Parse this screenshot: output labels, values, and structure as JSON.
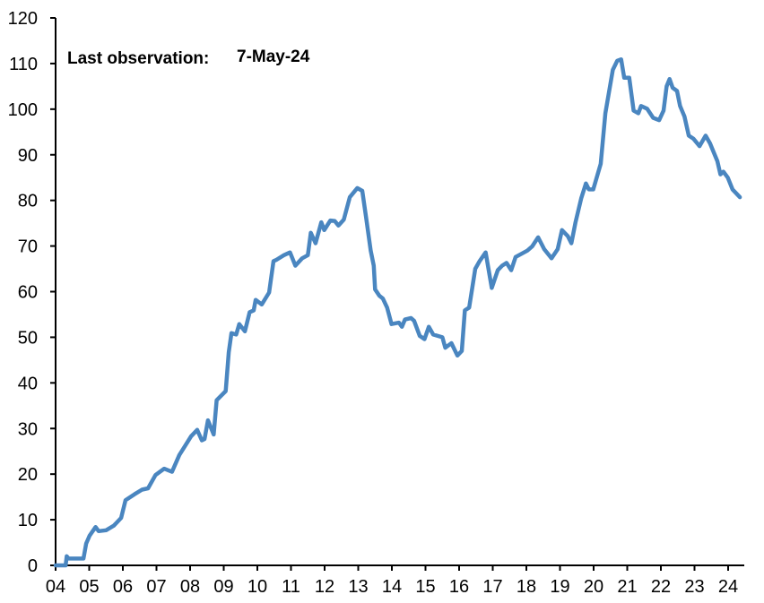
{
  "chart_data": {
    "type": "line",
    "title": "",
    "xlabel": "",
    "ylabel": "",
    "annotation": {
      "label": "Last observation:",
      "value": "7-May-24"
    },
    "xlim": [
      2004,
      2024.5
    ],
    "ylim": [
      0,
      120
    ],
    "y_ticks": [
      0,
      10,
      20,
      30,
      40,
      50,
      60,
      70,
      80,
      90,
      100,
      110,
      120
    ],
    "x_ticks": [
      {
        "value": 2004,
        "label": "04"
      },
      {
        "value": 2005,
        "label": "05"
      },
      {
        "value": 2006,
        "label": "06"
      },
      {
        "value": 2007,
        "label": "07"
      },
      {
        "value": 2008,
        "label": "08"
      },
      {
        "value": 2009,
        "label": "09"
      },
      {
        "value": 2010,
        "label": "10"
      },
      {
        "value": 2011,
        "label": "11"
      },
      {
        "value": 2012,
        "label": "12"
      },
      {
        "value": 2013,
        "label": "13"
      },
      {
        "value": 2014,
        "label": "14"
      },
      {
        "value": 2015,
        "label": "15"
      },
      {
        "value": 2016,
        "label": "16"
      },
      {
        "value": 2017,
        "label": "17"
      },
      {
        "value": 2018,
        "label": "18"
      },
      {
        "value": 2019,
        "label": "19"
      },
      {
        "value": 2020,
        "label": "20"
      },
      {
        "value": 2021,
        "label": "21"
      },
      {
        "value": 2022,
        "label": "22"
      },
      {
        "value": 2023,
        "label": "23"
      },
      {
        "value": 2024,
        "label": "24"
      }
    ],
    "grid": false,
    "legend": "none",
    "line_color": "#4a86c0",
    "series": [
      {
        "x": [
          2004.0,
          2004.3,
          2004.33,
          2004.39,
          2004.83,
          2004.91,
          2005.01,
          2005.19,
          2005.28,
          2005.5,
          2005.73,
          2005.95,
          2006.08,
          2006.35,
          2006.57,
          2006.75,
          2006.97,
          2007.23,
          2007.46,
          2007.68,
          2007.81,
          2008.03,
          2008.21,
          2008.35,
          2008.43,
          2008.53,
          2008.7,
          2008.79,
          2009.06,
          2009.15,
          2009.23,
          2009.37,
          2009.46,
          2009.63,
          2009.77,
          2009.89,
          2009.95,
          2010.13,
          2010.35,
          2010.48,
          2010.57,
          2010.79,
          2010.97,
          2011.13,
          2011.33,
          2011.5,
          2011.59,
          2011.73,
          2011.9,
          2011.99,
          2012.17,
          2012.3,
          2012.41,
          2012.57,
          2012.75,
          2012.97,
          2013.12,
          2013.23,
          2013.37,
          2013.46,
          2013.5,
          2013.63,
          2013.73,
          2013.86,
          2013.99,
          2014.21,
          2014.3,
          2014.39,
          2014.57,
          2014.66,
          2014.83,
          2014.97,
          2015.1,
          2015.23,
          2015.5,
          2015.59,
          2015.77,
          2015.95,
          2016.08,
          2016.17,
          2016.3,
          2016.48,
          2016.61,
          2016.79,
          2016.97,
          2017.15,
          2017.28,
          2017.41,
          2017.55,
          2017.68,
          2017.86,
          2018.03,
          2018.17,
          2018.35,
          2018.53,
          2018.75,
          2018.93,
          2019.06,
          2019.23,
          2019.34,
          2019.46,
          2019.63,
          2019.77,
          2019.86,
          2019.99,
          2020.13,
          2020.21,
          2020.35,
          2020.57,
          2020.7,
          2020.82,
          2020.91,
          2021.06,
          2021.19,
          2021.33,
          2021.41,
          2021.59,
          2021.77,
          2021.95,
          2022.08,
          2022.17,
          2022.26,
          2022.35,
          2022.48,
          2022.57,
          2022.7,
          2022.83,
          2022.97,
          2023.15,
          2023.33,
          2023.46,
          2023.68,
          2023.77,
          2023.86,
          2023.99,
          2024.13,
          2024.35
        ],
        "y": [
          0,
          0,
          2.0,
          1.5,
          1.5,
          4.8,
          6.5,
          8.4,
          7.5,
          7.7,
          8.7,
          10.4,
          14.3,
          15.6,
          16.6,
          16.9,
          19.8,
          21.2,
          20.5,
          24.2,
          25.7,
          28.3,
          29.7,
          27.4,
          27.7,
          31.8,
          28.7,
          36.2,
          38.2,
          46.7,
          50.9,
          50.6,
          52.9,
          51.3,
          55.5,
          55.9,
          58.2,
          57.2,
          59.8,
          66.7,
          67.0,
          68.0,
          68.6,
          65.7,
          67.3,
          68.0,
          72.9,
          70.6,
          75.2,
          73.5,
          75.6,
          75.5,
          74.5,
          75.8,
          80.7,
          82.7,
          82.1,
          76.5,
          69.0,
          65.7,
          60.5,
          59.1,
          58.5,
          56.5,
          52.9,
          53.2,
          52.3,
          53.9,
          54.2,
          53.6,
          50.3,
          49.6,
          52.3,
          50.6,
          50.0,
          47.7,
          48.7,
          46.0,
          47.0,
          55.9,
          56.5,
          65.0,
          66.7,
          68.6,
          60.8,
          64.7,
          65.7,
          66.3,
          64.7,
          67.6,
          68.3,
          69.0,
          69.9,
          71.9,
          69.3,
          67.3,
          69.3,
          73.5,
          72.2,
          70.6,
          75.2,
          80.4,
          83.7,
          82.4,
          82.4,
          86.0,
          88.0,
          99.1,
          108.6,
          110.6,
          110.9,
          106.9,
          106.9,
          99.7,
          99.1,
          100.7,
          100.1,
          98.1,
          97.6,
          99.7,
          105.0,
          106.6,
          104.7,
          104.0,
          100.7,
          98.4,
          94.2,
          93.5,
          91.9,
          94.2,
          92.5,
          88.6,
          85.7,
          86.3,
          85.0,
          82.4,
          80.7
        ]
      }
    ]
  }
}
